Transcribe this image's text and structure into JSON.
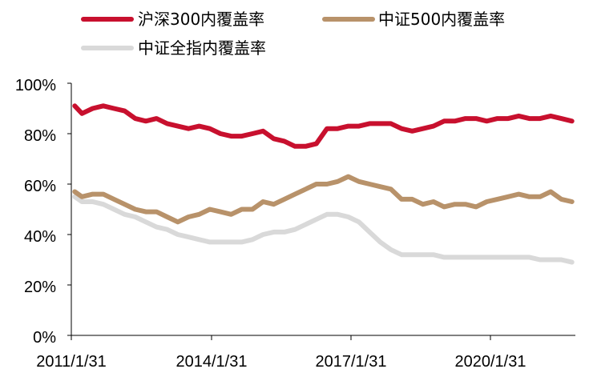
{
  "chart_data": {
    "type": "line",
    "title": "",
    "xlabel": "",
    "ylabel": "",
    "ylim": [
      0,
      100
    ],
    "y_ticks": [
      "0%",
      "20%",
      "40%",
      "60%",
      "80%",
      "100%"
    ],
    "x_ticks": [
      "2011/1/31",
      "2014/1/31",
      "2017/1/31",
      "2020/1/31"
    ],
    "grid": false,
    "legend_position": "top",
    "x": [
      "2011.08",
      "2011.25",
      "2011.5",
      "2011.75",
      "2012",
      "2012.25",
      "2012.5",
      "2012.75",
      "2013",
      "2013.25",
      "2013.5",
      "2013.75",
      "2014",
      "2014.25",
      "2014.5",
      "2014.75",
      "2015",
      "2015.25",
      "2015.5",
      "2015.75",
      "2016",
      "2016.25",
      "2016.5",
      "2016.75",
      "2017",
      "2017.25",
      "2017.5",
      "2017.75",
      "2018",
      "2018.25",
      "2018.5",
      "2018.75",
      "2019",
      "2019.25",
      "2019.5",
      "2019.75",
      "2020",
      "2020.25",
      "2020.5",
      "2020.75",
      "2021",
      "2021.25",
      "2021.5",
      "2021.75",
      "2022",
      "2022.25",
      "2022.5",
      "2022.75"
    ],
    "series": [
      {
        "name": "沪深300内覆盖率",
        "color": "#c8102e",
        "values": [
          91,
          88,
          90,
          91,
          90,
          89,
          86,
          85,
          86,
          84,
          83,
          82,
          83,
          82,
          80,
          79,
          79,
          80,
          81,
          78,
          77,
          75,
          75,
          76,
          82,
          82,
          83,
          83,
          84,
          84,
          84,
          82,
          81,
          82,
          83,
          85,
          85,
          86,
          86,
          85,
          86,
          86,
          87,
          86,
          86,
          87,
          86,
          85
        ]
      },
      {
        "name": "中证500内覆盖率",
        "color": "#b8926a",
        "values": [
          57,
          55,
          56,
          56,
          54,
          52,
          50,
          49,
          49,
          47,
          45,
          47,
          48,
          50,
          49,
          48,
          50,
          50,
          53,
          52,
          54,
          56,
          58,
          60,
          60,
          61,
          63,
          61,
          60,
          59,
          58,
          54,
          54,
          52,
          53,
          51,
          52,
          52,
          51,
          53,
          54,
          55,
          56,
          55,
          55,
          57,
          54,
          53
        ]
      },
      {
        "name": "中证全指内覆盖率",
        "color": "#d9d9d9",
        "values": [
          55,
          53,
          53,
          52,
          50,
          48,
          47,
          45,
          43,
          42,
          40,
          39,
          38,
          37,
          37,
          37,
          37,
          38,
          40,
          41,
          41,
          42,
          44,
          46,
          48,
          48,
          47,
          45,
          41,
          37,
          34,
          32,
          32,
          32,
          32,
          31,
          31,
          31,
          31,
          31,
          31,
          31,
          31,
          31,
          30,
          30,
          30,
          29
        ]
      }
    ]
  }
}
